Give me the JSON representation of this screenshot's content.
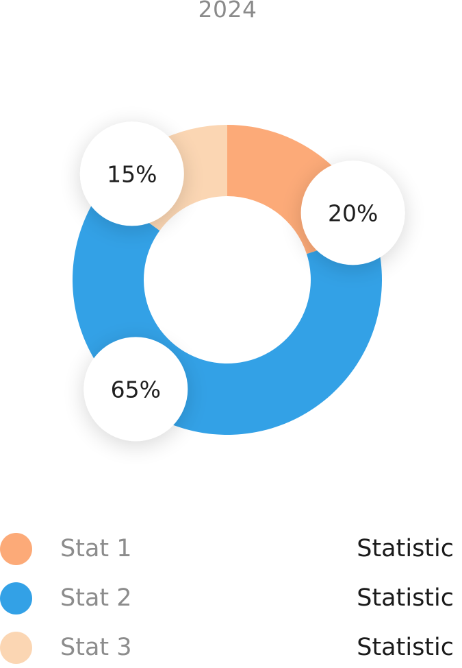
{
  "chart_data": {
    "type": "pie",
    "title": "2024",
    "slices": [
      {
        "label": "Stat 1",
        "value": 20,
        "value_label": "20%",
        "legend_value": "Statistic",
        "color": "#FCAA78"
      },
      {
        "label": "Stat 2",
        "value": 65,
        "value_label": "65%",
        "legend_value": "Statistic",
        "color": "#33A1E6"
      },
      {
        "label": "Stat 3",
        "value": 15,
        "value_label": "15%",
        "legend_value": "Statistic",
        "color": "#FBD6B3"
      }
    ],
    "donut": true,
    "legend_position": "bottom"
  }
}
